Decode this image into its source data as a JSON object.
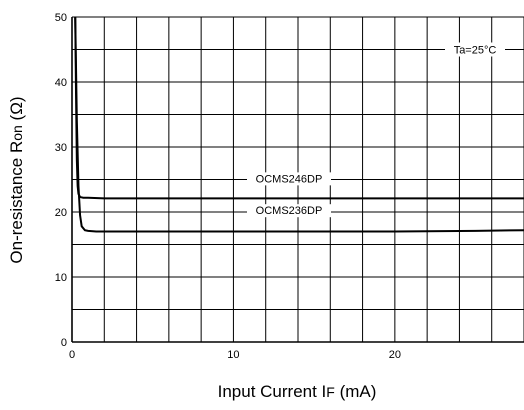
{
  "chart_data": {
    "type": "line",
    "xlabel_main": "Input Current I",
    "xlabel_sub": "F",
    "xlabel_unit": " (mA)",
    "ylabel_main": "On-resistance R",
    "ylabel_sub": "on",
    "ylabel_unit": " (Ω)",
    "xlim": [
      0,
      28
    ],
    "ylim": [
      0,
      50
    ],
    "x_ticks": [
      0,
      10,
      20
    ],
    "x_tick_labels": [
      "0",
      "10",
      "20"
    ],
    "y_ticks": [
      0,
      10,
      20,
      30,
      40,
      50
    ],
    "y_tick_labels": [
      "0",
      "10",
      "20",
      "30",
      "40",
      "50"
    ],
    "grid": true,
    "note": "Ta=25°C",
    "series": [
      {
        "name": "OCMS246DP",
        "x": [
          0.2,
          0.25,
          0.3,
          0.35,
          0.4,
          0.5,
          0.7,
          1.0,
          2.0,
          5,
          10,
          15,
          20,
          25,
          28
        ],
        "y": [
          50,
          38,
          28,
          24,
          22.8,
          22.3,
          22.2,
          22.2,
          22.1,
          22.1,
          22.1,
          22.1,
          22.1,
          22.1,
          22.1
        ]
      },
      {
        "name": "OCMS236DP",
        "x": [
          0.2,
          0.3,
          0.4,
          0.5,
          0.6,
          0.8,
          1.0,
          1.5,
          2.0,
          5,
          10,
          15,
          20,
          25,
          28
        ],
        "y": [
          50,
          34,
          24,
          19.5,
          17.8,
          17.2,
          17.1,
          17.0,
          17.0,
          17.0,
          17.0,
          17.0,
          17.0,
          17.1,
          17.2
        ]
      }
    ]
  }
}
